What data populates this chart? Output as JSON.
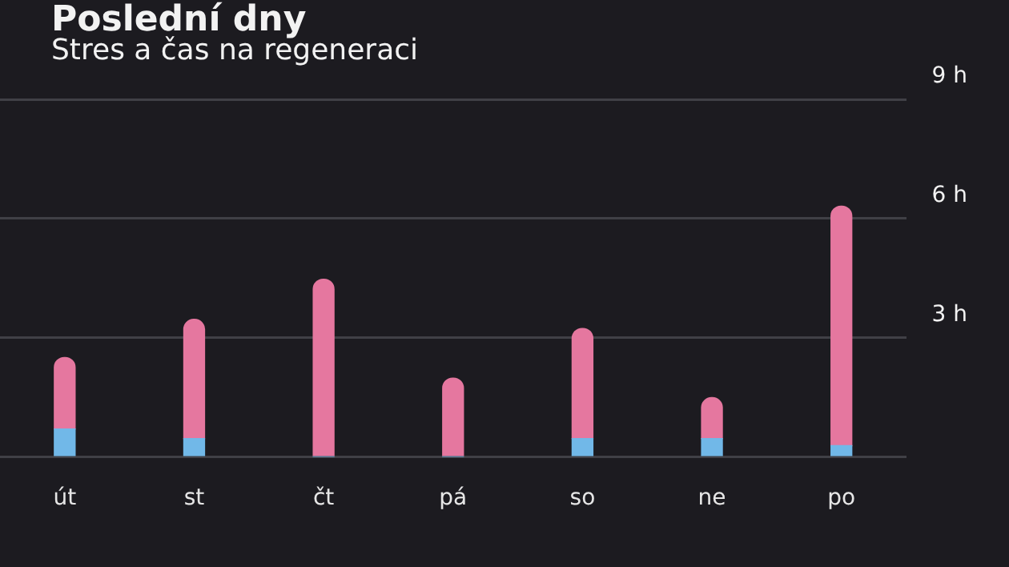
{
  "chart_data": {
    "type": "bar",
    "title": "Poslední dny",
    "subtitle": "Stres a čas na regeneraci",
    "stacked": true,
    "categories": [
      "út",
      "st",
      "čt",
      "pá",
      "so",
      "ne",
      "po"
    ],
    "series": [
      {
        "color": "#71b8e8",
        "values": [
          0.7,
          0.46,
          0,
          0,
          0.46,
          0.46,
          0.28
        ]
      },
      {
        "color": "#e5779f",
        "values": [
          1.8,
          3.0,
          4.47,
          1.98,
          2.77,
          1.03,
          6.03
        ]
      }
    ],
    "ylim": [
      0,
      9
    ],
    "yticks": [
      {
        "value": 0,
        "label": null
      },
      {
        "value": 3,
        "label": "3 h"
      },
      {
        "value": 6,
        "label": "6 h"
      },
      {
        "value": 9,
        "label": "9 h"
      }
    ],
    "grid": "y",
    "legend": false
  }
}
